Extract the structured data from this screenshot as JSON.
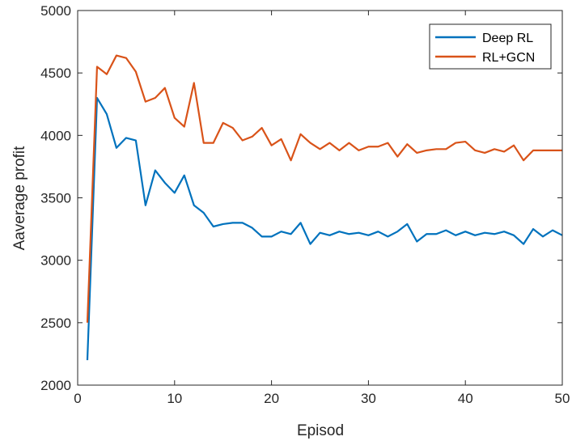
{
  "chart_data": {
    "type": "line",
    "title": "",
    "xlabel": "Episod",
    "ylabel": "Aaverage profit",
    "xlim": [
      0,
      50
    ],
    "ylim": [
      2000,
      5000
    ],
    "xticks": [
      0,
      10,
      20,
      30,
      40,
      50
    ],
    "yticks": [
      2000,
      2500,
      3000,
      3500,
      4000,
      4500,
      5000
    ],
    "grid": false,
    "legend_position": "top-right",
    "x": [
      1,
      2,
      3,
      4,
      5,
      6,
      7,
      8,
      9,
      10,
      11,
      12,
      13,
      14,
      15,
      16,
      17,
      18,
      19,
      20,
      21,
      22,
      23,
      24,
      25,
      26,
      27,
      28,
      29,
      30,
      31,
      32,
      33,
      34,
      35,
      36,
      37,
      38,
      39,
      40,
      41,
      42,
      43,
      44,
      45,
      46,
      47,
      48,
      49,
      50
    ],
    "series": [
      {
        "name": "Deep RL",
        "color": "#0072BD",
        "values": [
          2200,
          4300,
          4170,
          3900,
          3980,
          3960,
          3440,
          3720,
          3620,
          3540,
          3680,
          3440,
          3380,
          3270,
          3290,
          3300,
          3300,
          3260,
          3190,
          3190,
          3230,
          3210,
          3300,
          3130,
          3220,
          3200,
          3230,
          3210,
          3220,
          3200,
          3230,
          3190,
          3230,
          3290,
          3150,
          3210,
          3210,
          3240,
          3200,
          3230,
          3200,
          3220,
          3210,
          3230,
          3200,
          3130,
          3250,
          3190,
          3240,
          3200
        ]
      },
      {
        "name": "RL+GCN",
        "color": "#D95319",
        "values": [
          2500,
          4550,
          4490,
          4640,
          4620,
          4510,
          4270,
          4300,
          4380,
          4140,
          4070,
          4420,
          3940,
          3940,
          4100,
          4060,
          3960,
          3990,
          4060,
          3920,
          3970,
          3800,
          4010,
          3940,
          3890,
          3940,
          3880,
          3940,
          3880,
          3910,
          3910,
          3940,
          3830,
          3930,
          3860,
          3880,
          3890,
          3890,
          3940,
          3950,
          3880,
          3860,
          3890,
          3870,
          3920,
          3800,
          3880,
          3880,
          3880,
          3880
        ]
      }
    ]
  }
}
